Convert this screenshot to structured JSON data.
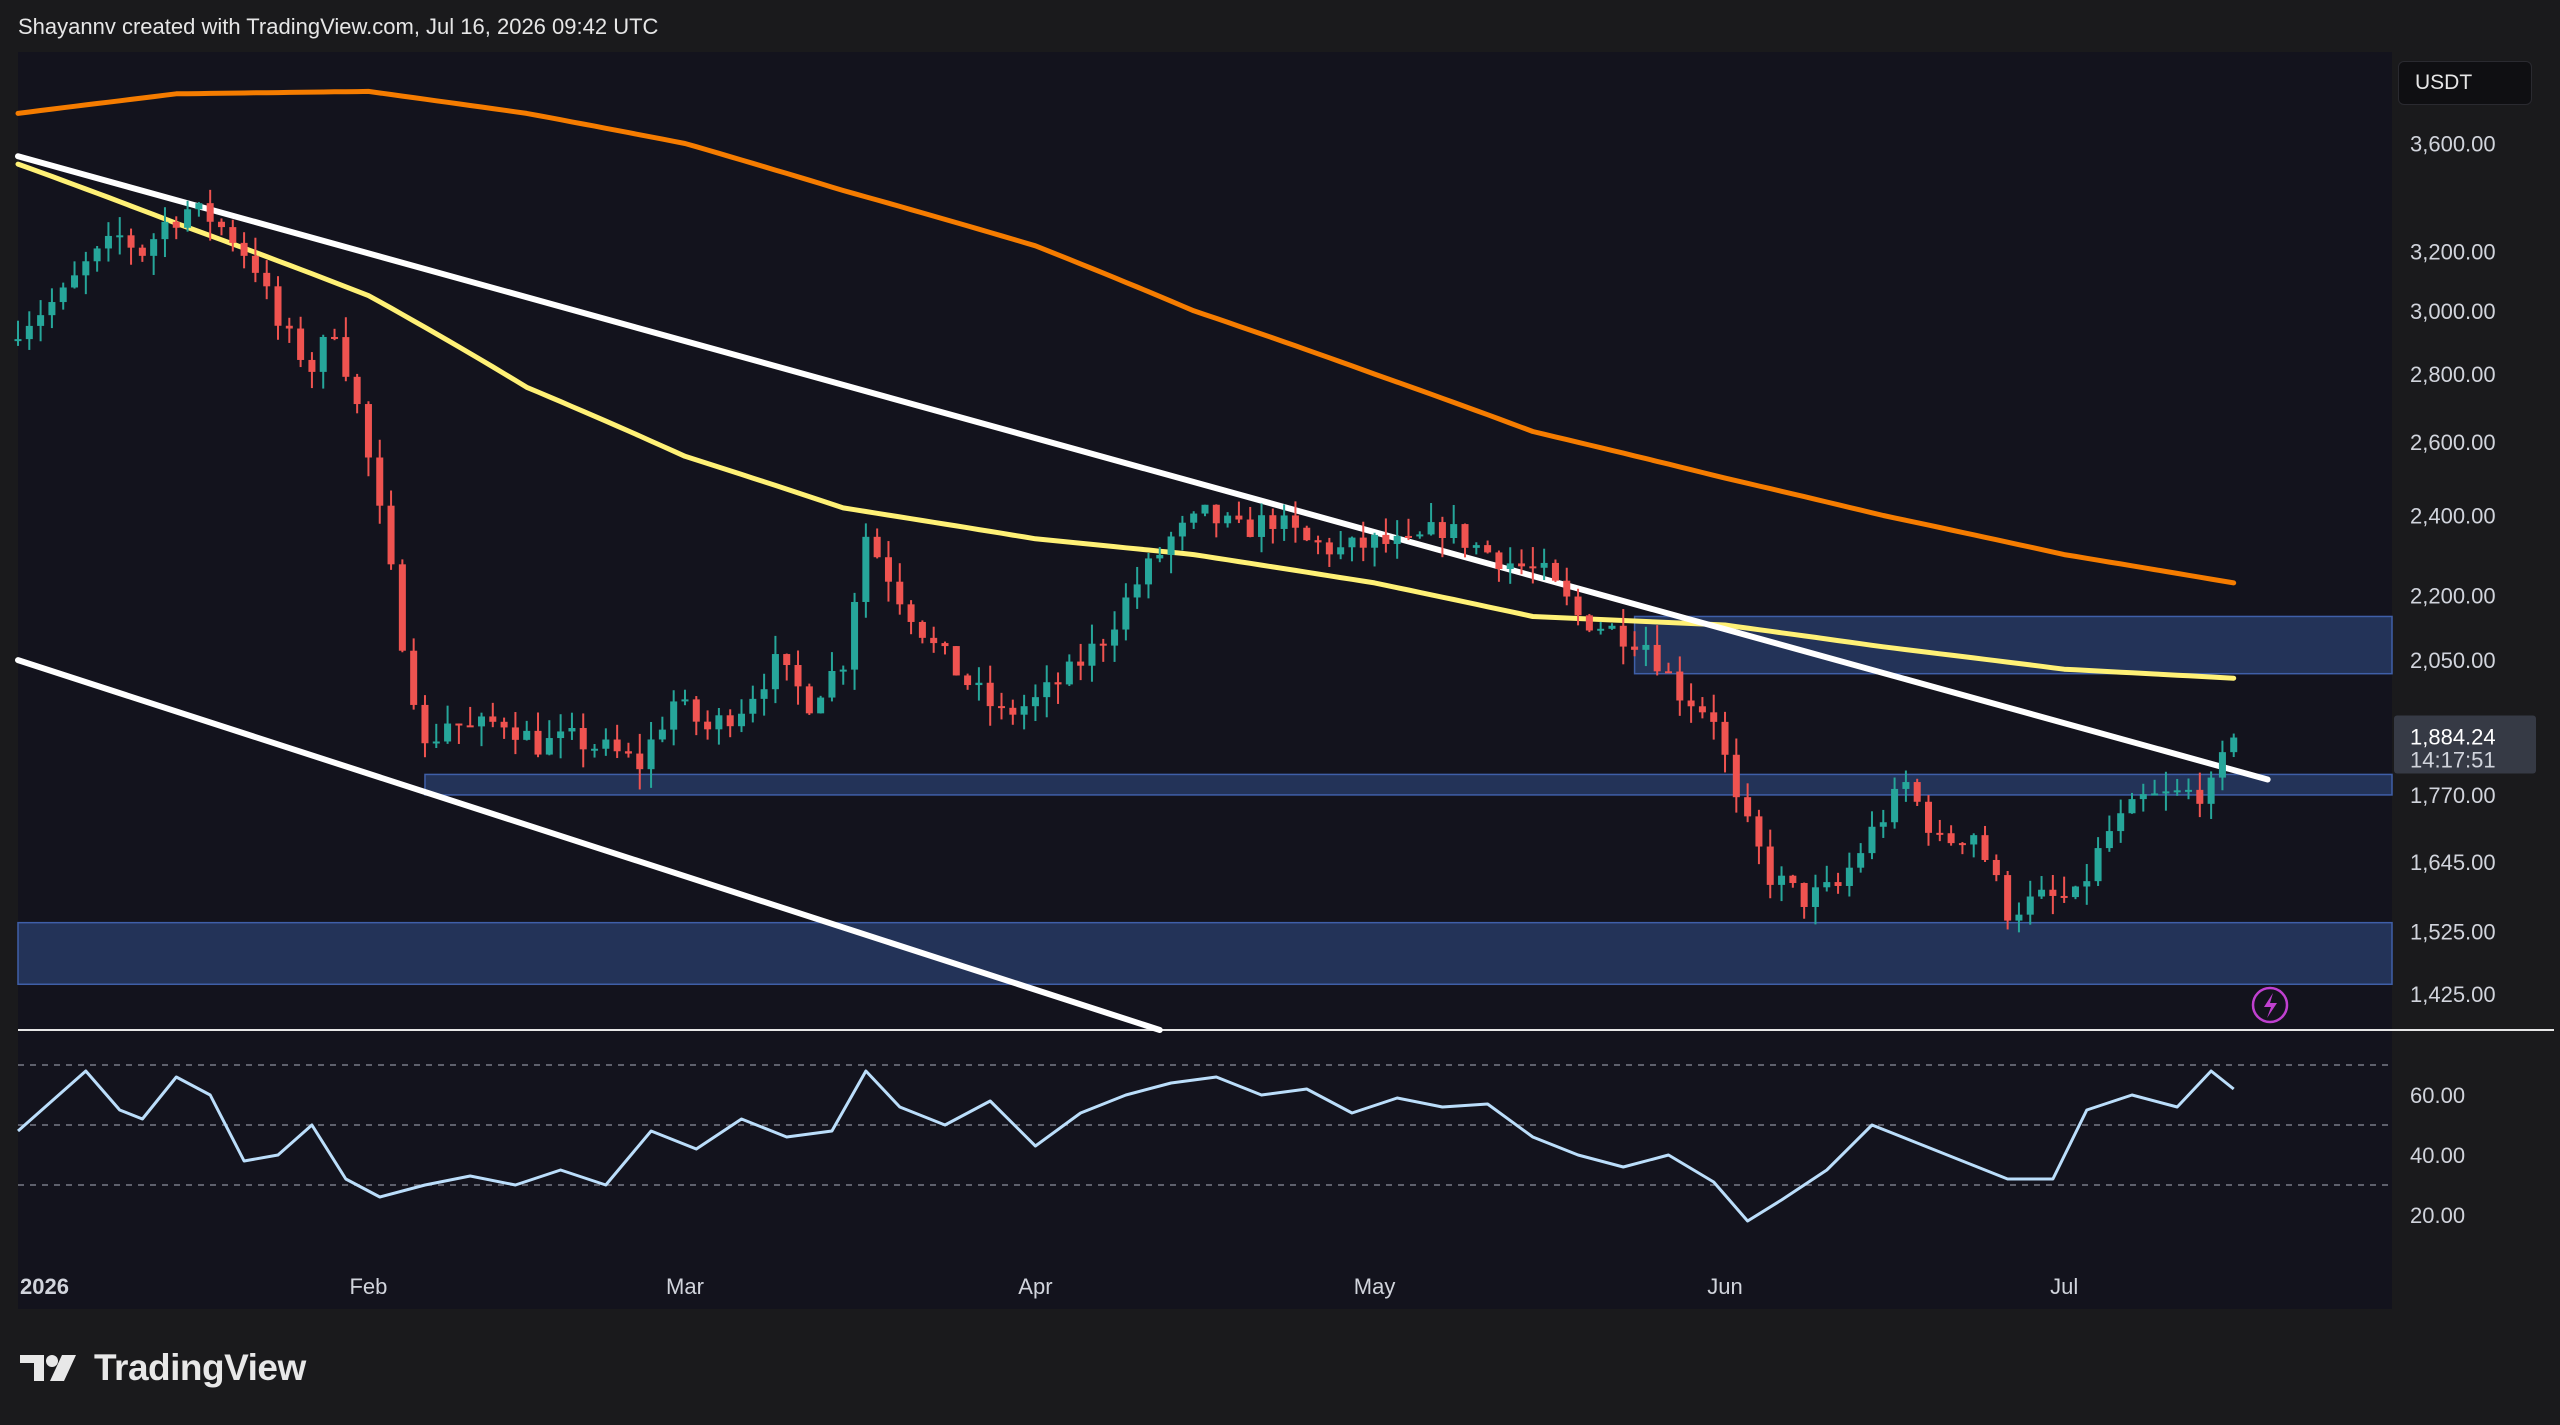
{
  "header": {
    "attribution": "Shayannv created with TradingView.com, Jul 16, 2026 09:42 UTC"
  },
  "currency": "USDT",
  "brand": {
    "name": "TradingView"
  },
  "colors": {
    "up": "#26a69a",
    "down": "#ef5350",
    "ema_short": "#fff176",
    "ema_long": "#f57c00",
    "zone": "#2a3f6c",
    "trendline": "#ffffff",
    "rsi": "#bbdefb"
  },
  "chart_data": [
    {
      "type": "candlestick",
      "scale": "log",
      "currency": "USDT",
      "ylim": [
        1370,
        3900
      ],
      "y_ticks": [
        "3,600.00",
        "3,200.00",
        "3,000.00",
        "2,800.00",
        "2,600.00",
        "2,400.00",
        "2,200.00",
        "2,050.00",
        "1,770.00",
        "1,645.00",
        "1,525.00",
        "1,425.00"
      ],
      "y_tick_values": [
        3600,
        3200,
        3000,
        2800,
        2600,
        2400,
        2200,
        2050,
        1770,
        1645,
        1525,
        1425
      ],
      "x_ticks": [
        "2026",
        "Feb",
        "Mar",
        "Apr",
        "May",
        "Jun",
        "Jul"
      ],
      "x_tick_dates": [
        "2026-01-01",
        "2026-02-01",
        "2026-03-01",
        "2026-04-01",
        "2026-05-01",
        "2026-06-01",
        "2026-07-01"
      ],
      "x_range": [
        "2026-01-01",
        "2026-07-30"
      ],
      "last_price": {
        "value": 1884.24,
        "label": "1,884.24",
        "countdown": "14:17:51"
      },
      "close_path": {
        "dates": [
          "2026-01-01",
          "2026-01-03",
          "2026-01-05",
          "2026-01-07",
          "2026-01-10",
          "2026-01-12",
          "2026-01-14",
          "2026-01-16",
          "2026-01-18",
          "2026-01-20",
          "2026-01-22",
          "2026-01-24",
          "2026-01-27",
          "2026-01-29",
          "2026-01-31",
          "2026-02-02",
          "2026-02-04",
          "2026-02-06",
          "2026-02-08",
          "2026-02-10",
          "2026-02-13",
          "2026-02-16",
          "2026-02-19",
          "2026-02-22",
          "2026-02-25",
          "2026-02-28",
          "2026-03-03",
          "2026-03-06",
          "2026-03-09",
          "2026-03-12",
          "2026-03-15",
          "2026-03-17",
          "2026-03-20",
          "2026-03-23",
          "2026-03-26",
          "2026-03-29",
          "2026-04-01",
          "2026-04-04",
          "2026-04-07",
          "2026-04-10",
          "2026-04-13",
          "2026-04-16",
          "2026-04-19",
          "2026-04-22",
          "2026-04-25",
          "2026-04-28",
          "2026-05-01",
          "2026-05-04",
          "2026-05-07",
          "2026-05-10",
          "2026-05-13",
          "2026-05-16",
          "2026-05-19",
          "2026-05-22",
          "2026-05-25",
          "2026-05-28",
          "2026-05-31",
          "2026-06-02",
          "2026-06-05",
          "2026-06-08",
          "2026-06-11",
          "2026-06-14",
          "2026-06-17",
          "2026-06-20",
          "2026-06-23",
          "2026-06-26",
          "2026-06-29",
          "2026-07-02",
          "2026-07-05",
          "2026-07-08",
          "2026-07-11",
          "2026-07-14",
          "2026-07-16"
        ],
        "values": [
          2950,
          3000,
          3050,
          3150,
          3250,
          3200,
          3300,
          3350,
          3320,
          3250,
          3150,
          2950,
          2820,
          2950,
          2700,
          2400,
          2100,
          1860,
          1920,
          1900,
          1920,
          1870,
          1880,
          1860,
          1830,
          1960,
          1900,
          1950,
          2040,
          1960,
          2050,
          2350,
          2200,
          2080,
          2000,
          1930,
          1960,
          2020,
          2100,
          2230,
          2340,
          2400,
          2360,
          2390,
          2330,
          2310,
          2330,
          2320,
          2370,
          2320,
          2280,
          2250,
          2150,
          2120,
          2090,
          1980,
          1930,
          1750,
          1620,
          1580,
          1600,
          1700,
          1790,
          1680,
          1700,
          1560,
          1580,
          1580,
          1700,
          1760,
          1770,
          1780,
          1884
        ]
      },
      "series": [
        {
          "name": "",
          "role": "ema-short",
          "color": "#fff176",
          "dates": [
            "2026-01-01",
            "2026-01-15",
            "2026-02-01",
            "2026-02-15",
            "2026-03-01",
            "2026-03-15",
            "2026-04-01",
            "2026-04-15",
            "2026-05-01",
            "2026-05-15",
            "2026-06-01",
            "2026-06-15",
            "2026-07-01",
            "2026-07-16"
          ],
          "values": [
            3520,
            3300,
            3050,
            2760,
            2560,
            2420,
            2340,
            2300,
            2230,
            2150,
            2130,
            2080,
            2030,
            2010
          ]
        },
        {
          "name": "",
          "role": "ema-long",
          "color": "#f57c00",
          "dates": [
            "2026-01-01",
            "2026-01-15",
            "2026-02-01",
            "2026-02-15",
            "2026-03-01",
            "2026-03-15",
            "2026-04-01",
            "2026-04-15",
            "2026-05-01",
            "2026-05-15",
            "2026-06-01",
            "2026-06-15",
            "2026-07-01",
            "2026-07-16"
          ],
          "values": [
            3720,
            3800,
            3810,
            3720,
            3600,
            3420,
            3220,
            3000,
            2800,
            2630,
            2500,
            2400,
            2300,
            2230
          ]
        }
      ],
      "zones": [
        {
          "low": 2020,
          "high": 2150,
          "from": "2026-05-24",
          "to": "2026-07-30"
        },
        {
          "low": 1770,
          "high": 1810,
          "from": "2026-02-06",
          "to": "2026-07-30"
        },
        {
          "low": 1440,
          "high": 1540,
          "from": "2026-01-01",
          "to": "2026-07-30"
        }
      ],
      "trendlines": [
        {
          "from": {
            "date": "2026-01-01",
            "value": 3550
          },
          "to": {
            "date": "2026-07-19",
            "value": 1800
          }
        },
        {
          "from": {
            "date": "2026-01-01",
            "value": 2050
          },
          "to": {
            "date": "2026-04-12",
            "value": 1370
          }
        }
      ]
    },
    {
      "type": "line",
      "ylim": [
        5,
        75
      ],
      "y_ticks": [
        "60.00",
        "40.00",
        "20.00"
      ],
      "y_tick_values": [
        60,
        40,
        20
      ],
      "levels": [
        70,
        50,
        30
      ],
      "series": [
        {
          "name": "",
          "color": "#bbdefb",
          "dates": [
            "2026-01-01",
            "2026-01-04",
            "2026-01-07",
            "2026-01-10",
            "2026-01-12",
            "2026-01-15",
            "2026-01-18",
            "2026-01-21",
            "2026-01-24",
            "2026-01-27",
            "2026-01-30",
            "2026-02-02",
            "2026-02-06",
            "2026-02-10",
            "2026-02-14",
            "2026-02-18",
            "2026-02-22",
            "2026-02-26",
            "2026-03-02",
            "2026-03-06",
            "2026-03-10",
            "2026-03-14",
            "2026-03-17",
            "2026-03-20",
            "2026-03-24",
            "2026-03-28",
            "2026-04-01",
            "2026-04-05",
            "2026-04-09",
            "2026-04-13",
            "2026-04-17",
            "2026-04-21",
            "2026-04-25",
            "2026-04-29",
            "2026-05-03",
            "2026-05-07",
            "2026-05-11",
            "2026-05-15",
            "2026-05-19",
            "2026-05-23",
            "2026-05-27",
            "2026-05-31",
            "2026-06-03",
            "2026-06-06",
            "2026-06-10",
            "2026-06-14",
            "2026-06-18",
            "2026-06-22",
            "2026-06-26",
            "2026-06-30",
            "2026-07-03",
            "2026-07-07",
            "2026-07-11",
            "2026-07-14",
            "2026-07-16"
          ],
          "values": [
            48,
            58,
            68,
            55,
            52,
            66,
            60,
            38,
            40,
            50,
            32,
            26,
            30,
            33,
            30,
            35,
            30,
            48,
            42,
            52,
            46,
            48,
            68,
            56,
            50,
            58,
            43,
            54,
            60,
            64,
            66,
            60,
            62,
            54,
            59,
            56,
            57,
            46,
            40,
            36,
            40,
            31,
            18,
            25,
            35,
            50,
            44,
            38,
            32,
            32,
            55,
            60,
            56,
            68,
            62
          ]
        }
      ]
    }
  ]
}
